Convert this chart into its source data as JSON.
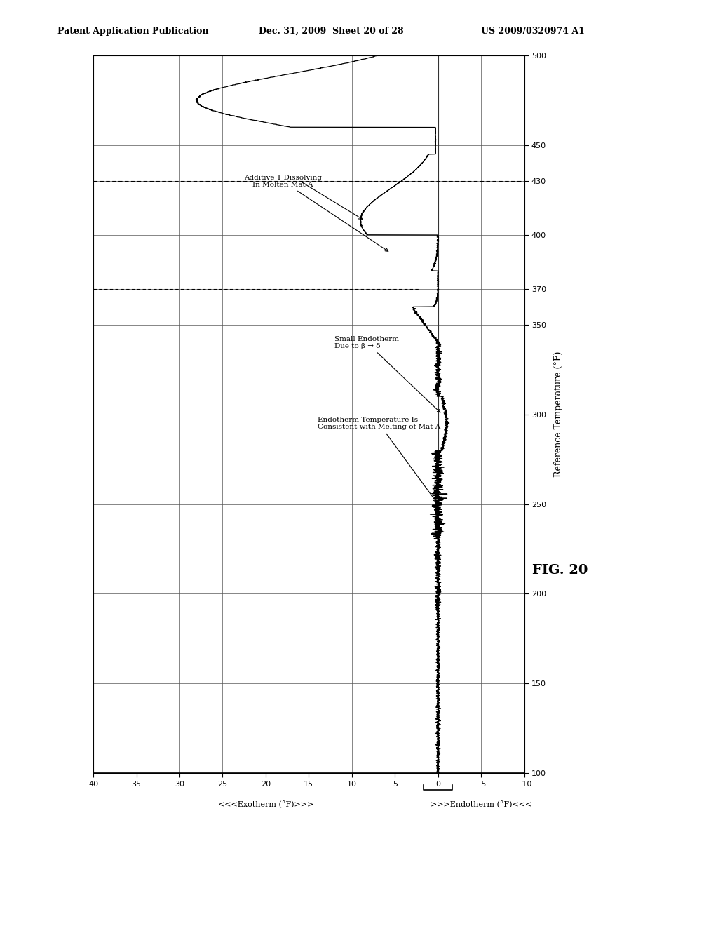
{
  "header_left": "Patent Application Publication",
  "header_mid": "Dec. 31, 2009  Sheet 20 of 28",
  "header_right": "US 2009/0320974 A1",
  "fig_label": "FIG. 20",
  "temp_label": "Reference Temperature (°F)",
  "dsc_label_exo": "<<<Exotherm (°F)>>>",
  "dsc_label_endo": ">>>Endotherm (°F)<<<",
  "temp_min": 100,
  "temp_max": 500,
  "dsc_min": -10,
  "dsc_max": 40,
  "temp_ticks": [
    100,
    150,
    200,
    250,
    300,
    350,
    370,
    400,
    430,
    450,
    500
  ],
  "dsc_ticks": [
    -10,
    -5,
    0,
    5,
    10,
    15,
    20,
    25,
    30,
    35,
    40
  ],
  "annotation1_text": "Small Endotherm\nDue to β → δ",
  "annotation2_text": "Endotherm Temperature Is\nConsistent with Melting of Mat A",
  "annotation3_text": "Additive 1 Dissolving\nIn Molten Mat A",
  "dashed_line_temp1": 430,
  "dashed_line_temp2": 370
}
